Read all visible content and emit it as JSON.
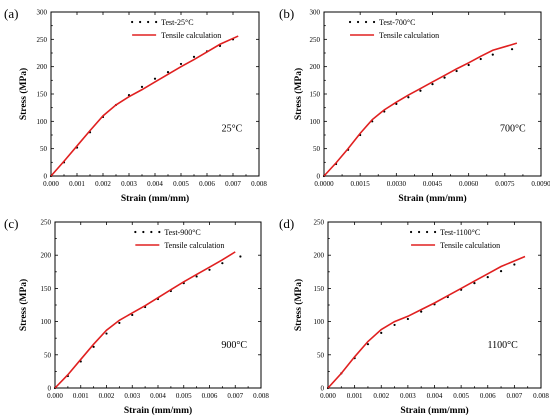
{
  "chart_data": [
    {
      "type": "line",
      "panel_label": "(a)",
      "temperature_label": "25°C",
      "xlabel": "Strain (mm/mm)",
      "ylabel": "Stress (MPa)",
      "xlim": [
        0,
        0.008
      ],
      "ylim": [
        0,
        300
      ],
      "xticks": [
        "0.000",
        "0.001",
        "0.002",
        "0.003",
        "0.004",
        "0.005",
        "0.006",
        "0.007",
        "0.008"
      ],
      "yticks": [
        "0",
        "50",
        "100",
        "150",
        "200",
        "250",
        "300"
      ],
      "legend_position": "top-right",
      "series": [
        {
          "name": "Test-25°C",
          "style": "dotted",
          "color": "#000000",
          "points": [
            [
              0.0,
              0
            ],
            [
              0.0005,
              25
            ],
            [
              0.001,
              52
            ],
            [
              0.0015,
              80
            ],
            [
              0.002,
              108
            ],
            [
              0.0025,
              130
            ],
            [
              0.003,
              148
            ],
            [
              0.0035,
              163
            ],
            [
              0.004,
              178
            ],
            [
              0.0045,
              190
            ],
            [
              0.005,
              205
            ],
            [
              0.0055,
              218
            ],
            [
              0.006,
              228
            ],
            [
              0.0065,
              238
            ],
            [
              0.007,
              250
            ]
          ]
        },
        {
          "name": "Tensile calculation",
          "style": "solid",
          "color": "#e02020",
          "points": [
            [
              0.0,
              0
            ],
            [
              0.0005,
              27
            ],
            [
              0.001,
              55
            ],
            [
              0.0015,
              83
            ],
            [
              0.002,
              110
            ],
            [
              0.0025,
              130
            ],
            [
              0.003,
              145
            ],
            [
              0.0035,
              158
            ],
            [
              0.004,
              172
            ],
            [
              0.0045,
              186
            ],
            [
              0.005,
              200
            ],
            [
              0.0055,
              213
            ],
            [
              0.006,
              227
            ],
            [
              0.0065,
              241
            ],
            [
              0.0072,
              256
            ]
          ]
        }
      ]
    },
    {
      "type": "line",
      "panel_label": "(b)",
      "temperature_label": "700°C",
      "xlabel": "Strain (mm/mm)",
      "ylabel": "Stress (MPa)",
      "xlim": [
        0,
        0.009
      ],
      "ylim": [
        0,
        300
      ],
      "xticks": [
        "0.0000",
        "0.0015",
        "0.0030",
        "0.0045",
        "0.0060",
        "0.0075",
        "0.0090"
      ],
      "yticks": [
        "0",
        "50",
        "100",
        "150",
        "200",
        "250",
        "300"
      ],
      "legend_position": "top-left",
      "series": [
        {
          "name": "Test-700°C",
          "style": "dotted",
          "color": "#000000",
          "points": [
            [
              0.0,
              0
            ],
            [
              0.0005,
              22
            ],
            [
              0.001,
              48
            ],
            [
              0.0015,
              75
            ],
            [
              0.002,
              100
            ],
            [
              0.0025,
              118
            ],
            [
              0.003,
              132
            ],
            [
              0.0035,
              144
            ],
            [
              0.004,
              156
            ],
            [
              0.0045,
              168
            ],
            [
              0.005,
              180
            ],
            [
              0.0055,
              192
            ],
            [
              0.006,
              203
            ],
            [
              0.0065,
              214
            ],
            [
              0.007,
              222
            ],
            [
              0.0078,
              232
            ]
          ]
        },
        {
          "name": "Tensile calculation",
          "style": "solid",
          "color": "#e02020",
          "points": [
            [
              0.0,
              0
            ],
            [
              0.0005,
              24
            ],
            [
              0.001,
              50
            ],
            [
              0.0015,
              78
            ],
            [
              0.002,
              103
            ],
            [
              0.0025,
              121
            ],
            [
              0.003,
              135
            ],
            [
              0.0035,
              148
            ],
            [
              0.004,
              160
            ],
            [
              0.0045,
              172
            ],
            [
              0.005,
              184
            ],
            [
              0.0055,
              196
            ],
            [
              0.006,
              207
            ],
            [
              0.0065,
              219
            ],
            [
              0.007,
              230
            ],
            [
              0.008,
              243
            ]
          ]
        }
      ]
    },
    {
      "type": "line",
      "panel_label": "(c)",
      "temperature_label": "900°C",
      "xlabel": "Strain (mm/mm)",
      "ylabel": "Stress (MPa)",
      "xlim": [
        0,
        0.008
      ],
      "ylim": [
        0,
        250
      ],
      "xticks": [
        "0.000",
        "0.001",
        "0.002",
        "0.003",
        "0.004",
        "0.005",
        "0.006",
        "0.007",
        "0.008"
      ],
      "yticks": [
        "0",
        "50",
        "100",
        "150",
        "200",
        "250"
      ],
      "legend_position": "top-center",
      "series": [
        {
          "name": "Test-900°C",
          "style": "dotted",
          "color": "#000000",
          "points": [
            [
              0.0,
              0
            ],
            [
              0.0005,
              18
            ],
            [
              0.001,
              40
            ],
            [
              0.0015,
              62
            ],
            [
              0.002,
              82
            ],
            [
              0.0025,
              98
            ],
            [
              0.003,
              110
            ],
            [
              0.0035,
              122
            ],
            [
              0.004,
              134
            ],
            [
              0.0045,
              146
            ],
            [
              0.005,
              158
            ],
            [
              0.0055,
              168
            ],
            [
              0.006,
              178
            ],
            [
              0.0065,
              188
            ],
            [
              0.0072,
              198
            ]
          ]
        },
        {
          "name": "Tensile calculation",
          "style": "solid",
          "color": "#e02020",
          "points": [
            [
              0.0,
              0
            ],
            [
              0.0005,
              20
            ],
            [
              0.001,
              43
            ],
            [
              0.0015,
              66
            ],
            [
              0.002,
              87
            ],
            [
              0.0025,
              102
            ],
            [
              0.003,
              113
            ],
            [
              0.0035,
              124
            ],
            [
              0.004,
              136
            ],
            [
              0.0045,
              148
            ],
            [
              0.005,
              160
            ],
            [
              0.0055,
              171
            ],
            [
              0.006,
              182
            ],
            [
              0.0065,
              193
            ],
            [
              0.007,
              205
            ]
          ]
        }
      ]
    },
    {
      "type": "line",
      "panel_label": "(d)",
      "temperature_label": "1100°C",
      "xlabel": "Strain (mm/mm)",
      "ylabel": "Stress (MPa)",
      "xlim": [
        0,
        0.008
      ],
      "ylim": [
        0,
        250
      ],
      "xticks": [
        "0.000",
        "0.001",
        "0.002",
        "0.003",
        "0.004",
        "0.005",
        "0.006",
        "0.007",
        "0.008"
      ],
      "yticks": [
        "0",
        "50",
        "100",
        "150",
        "200",
        "250"
      ],
      "legend_position": "top-center",
      "series": [
        {
          "name": "Test-1100°C",
          "style": "dotted",
          "color": "#000000",
          "points": [
            [
              0.0,
              0
            ],
            [
              0.0005,
              22
            ],
            [
              0.001,
              45
            ],
            [
              0.0015,
              66
            ],
            [
              0.002,
              83
            ],
            [
              0.0025,
              95
            ],
            [
              0.003,
              104
            ],
            [
              0.0035,
              115
            ],
            [
              0.004,
              126
            ],
            [
              0.0045,
              137
            ],
            [
              0.005,
              148
            ],
            [
              0.0055,
              158
            ],
            [
              0.006,
              167
            ],
            [
              0.0065,
              176
            ],
            [
              0.007,
              186
            ]
          ]
        },
        {
          "name": "Tensile calculation",
          "style": "solid",
          "color": "#e02020",
          "points": [
            [
              0.0,
              0
            ],
            [
              0.0005,
              22
            ],
            [
              0.001,
              47
            ],
            [
              0.0015,
              70
            ],
            [
              0.002,
              88
            ],
            [
              0.0025,
              100
            ],
            [
              0.003,
              108
            ],
            [
              0.0035,
              118
            ],
            [
              0.004,
              128
            ],
            [
              0.0045,
              139
            ],
            [
              0.005,
              150
            ],
            [
              0.0055,
              161
            ],
            [
              0.006,
              172
            ],
            [
              0.0065,
              183
            ],
            [
              0.0074,
              198
            ]
          ]
        }
      ]
    }
  ]
}
